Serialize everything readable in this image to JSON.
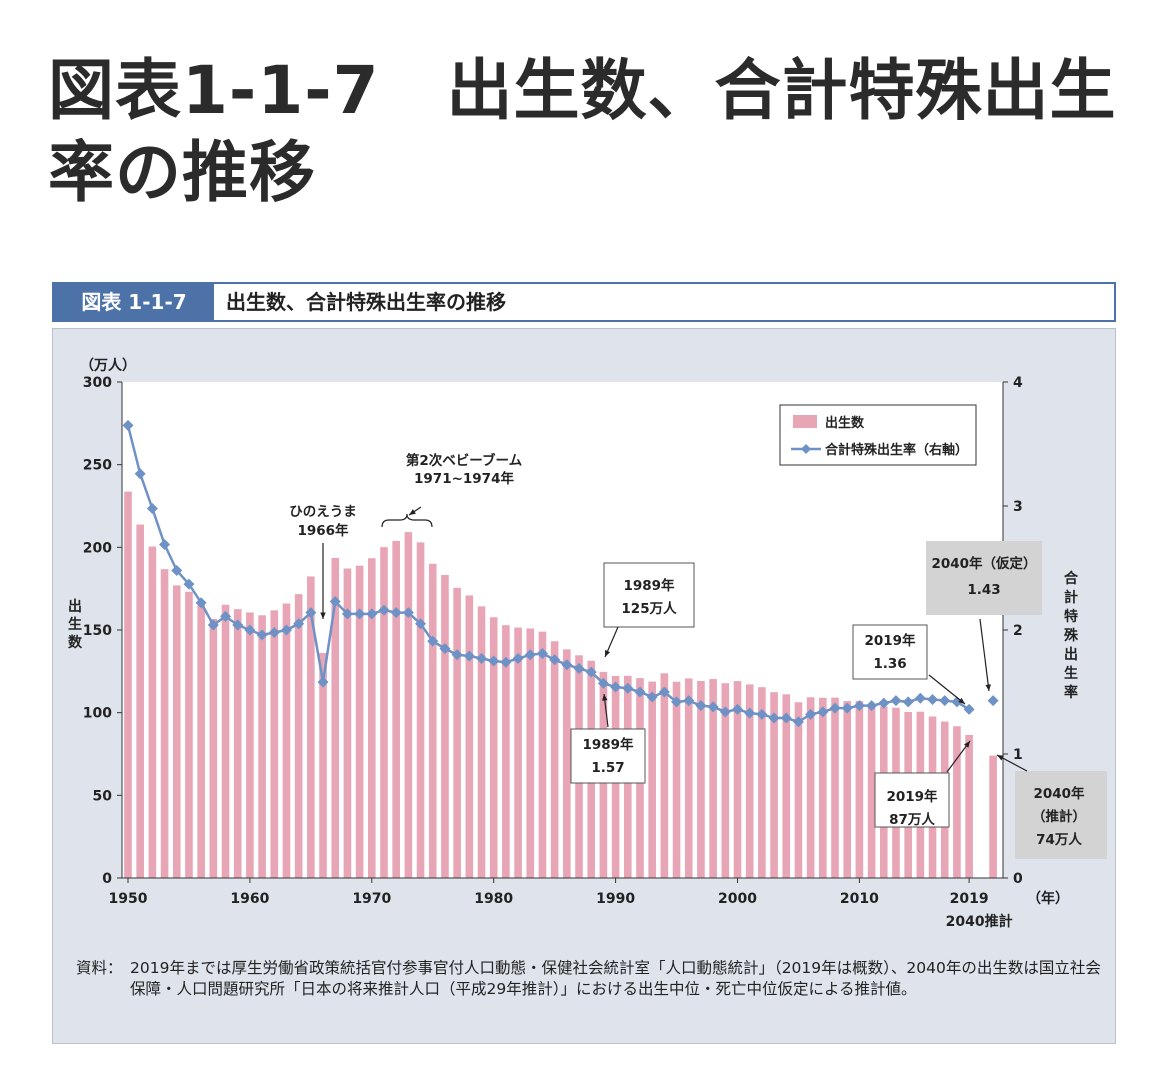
{
  "page_title": "図表1-1-7　出生数、合計特殊出生率の推移",
  "header": {
    "tag": "図表 1-1-7",
    "title": "出生数、合計特殊出生率の推移"
  },
  "colors": {
    "bar": "#e8a5b6",
    "line": "#6e92c6",
    "header": "#4c72a8",
    "panel": "#dfe4ec"
  },
  "chart_data": {
    "type": "bar+line",
    "title": "出生数、合計特殊出生率の推移",
    "left_unit": "（万人）",
    "left_label": "出生数",
    "right_label": "合計特殊出生率",
    "x_unit": "（年）",
    "ylim_left": [
      0,
      300
    ],
    "yticks_left": [
      0,
      50,
      100,
      150,
      200,
      250,
      300
    ],
    "ylim_right": [
      0,
      4
    ],
    "yticks_right": [
      0,
      1,
      2,
      3,
      4
    ],
    "xticks": [
      "1950",
      "1960",
      "1970",
      "1980",
      "1990",
      "2000",
      "2010",
      "2019"
    ],
    "extra_xtick": "2040推計",
    "legend": {
      "position": "top-right",
      "bars": "出生数",
      "line": "合計特殊出生率（右軸）"
    },
    "years": [
      1950,
      1951,
      1952,
      1953,
      1954,
      1955,
      1956,
      1957,
      1958,
      1959,
      1960,
      1961,
      1962,
      1963,
      1964,
      1965,
      1966,
      1967,
      1968,
      1969,
      1970,
      1971,
      1972,
      1973,
      1974,
      1975,
      1976,
      1977,
      1978,
      1979,
      1980,
      1981,
      1982,
      1983,
      1984,
      1985,
      1986,
      1987,
      1988,
      1989,
      1990,
      1991,
      1992,
      1993,
      1994,
      1995,
      1996,
      1997,
      1998,
      1999,
      2000,
      2001,
      2002,
      2003,
      2004,
      2005,
      2006,
      2007,
      2008,
      2009,
      2010,
      2011,
      2012,
      2013,
      2014,
      2015,
      2016,
      2017,
      2018,
      2019
    ],
    "births": [
      233.7,
      213.8,
      200.5,
      186.8,
      177.0,
      173.1,
      166.5,
      156.7,
      165.3,
      162.6,
      160.6,
      158.9,
      161.9,
      166.0,
      171.7,
      182.4,
      136.1,
      193.6,
      187.2,
      188.9,
      193.4,
      200.1,
      203.9,
      209.2,
      203.0,
      190.1,
      183.3,
      175.5,
      170.9,
      164.3,
      157.7,
      152.9,
      151.5,
      150.9,
      149.0,
      143.2,
      138.3,
      134.7,
      131.4,
      124.7,
      122.2,
      122.3,
      120.9,
      118.8,
      123.8,
      118.7,
      120.7,
      119.2,
      120.3,
      117.8,
      119.1,
      117.1,
      115.4,
      112.4,
      111.1,
      106.3,
      109.3,
      109.0,
      109.1,
      107.0,
      107.1,
      105.1,
      103.7,
      103.0,
      100.4,
      100.6,
      97.7,
      94.6,
      91.8,
      86.5
    ],
    "rate": [
      3.65,
      3.26,
      2.98,
      2.69,
      2.48,
      2.37,
      2.22,
      2.04,
      2.11,
      2.04,
      2.0,
      1.96,
      1.98,
      2.0,
      2.05,
      2.14,
      1.58,
      2.23,
      2.13,
      2.13,
      2.13,
      2.16,
      2.14,
      2.14,
      2.05,
      1.91,
      1.85,
      1.8,
      1.79,
      1.77,
      1.75,
      1.74,
      1.77,
      1.8,
      1.81,
      1.76,
      1.72,
      1.69,
      1.66,
      1.57,
      1.54,
      1.53,
      1.5,
      1.46,
      1.5,
      1.42,
      1.43,
      1.39,
      1.38,
      1.34,
      1.36,
      1.33,
      1.32,
      1.29,
      1.29,
      1.26,
      1.32,
      1.34,
      1.37,
      1.37,
      1.39,
      1.39,
      1.41,
      1.43,
      1.42,
      1.45,
      1.44,
      1.43,
      1.42,
      1.36
    ],
    "projection_2040": {
      "births": 74,
      "rate": 1.43
    },
    "annotations": {
      "hinoe": [
        "ひのえうま",
        "1966年"
      ],
      "boom": [
        "第2次ベビーブーム",
        "1971~1974年"
      ],
      "b1989": [
        "1989年",
        "125万人"
      ],
      "r1989": [
        "1989年",
        "1.57"
      ],
      "r2019": [
        "2019年",
        "1.36"
      ],
      "b2019": [
        "2019年",
        "87万人"
      ],
      "r2040": [
        "2040年（仮定）",
        "1.43"
      ],
      "b2040": [
        "2040年",
        "（推計）",
        "74万人"
      ]
    }
  },
  "source": {
    "label": "資料：",
    "text": "2019年までは厚生労働省政策統括官付参事官付人口動態・保健社会統計室「人口動態統計」（2019年は概数）、2040年の出生数は国立社会保障・人口問題研究所「日本の将来推計人口（平成29年推計）」における出生中位・死亡中位仮定による推計値。"
  }
}
